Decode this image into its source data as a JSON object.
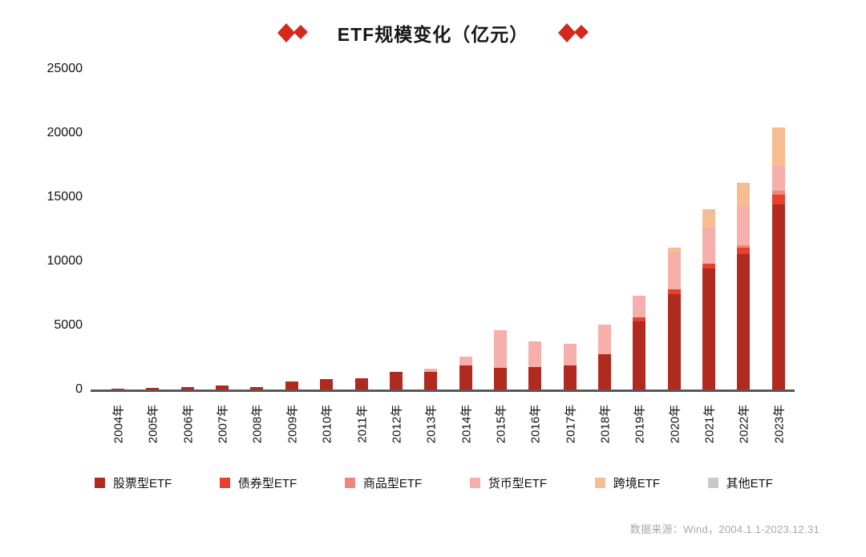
{
  "title": {
    "text": "ETF规模变化（亿元）"
  },
  "decoration": {
    "diamond_color": "#d3281e",
    "name": "double-diamond"
  },
  "footer": {
    "source": "数据来源：Wind，2004.1.1-2023.12.31"
  },
  "axis_color": "#58585a",
  "chart_data": {
    "type": "bar",
    "stacked": true,
    "title": "ETF规模变化（亿元）",
    "xlabel": "",
    "ylabel": "",
    "ylim": [
      0,
      25000
    ],
    "yticks": [
      0,
      5000,
      10000,
      15000,
      20000,
      25000
    ],
    "grid": false,
    "legend_position": "bottom",
    "categories": [
      "2004年",
      "2005年",
      "2006年",
      "2007年",
      "2008年",
      "2009年",
      "2010年",
      "2011年",
      "2012年",
      "2013年",
      "2014年",
      "2015年",
      "2016年",
      "2017年",
      "2018年",
      "2019年",
      "2020年",
      "2021年",
      "2022年",
      "2023年"
    ],
    "series": [
      {
        "name": "股票型ETF",
        "color": "#b12a20",
        "values": [
          150,
          200,
          250,
          400,
          250,
          700,
          870,
          930,
          1450,
          1450,
          1950,
          1750,
          1800,
          1950,
          2800,
          5400,
          7500,
          9500,
          10600,
          14500
        ]
      },
      {
        "name": "债券型ETF",
        "color": "#e8402f",
        "values": [
          0,
          0,
          0,
          0,
          0,
          0,
          0,
          0,
          0,
          0,
          0,
          0,
          0,
          0,
          0,
          300,
          350,
          400,
          500,
          750
        ]
      },
      {
        "name": "商品型ETF",
        "color": "#f0867b",
        "values": [
          0,
          0,
          0,
          0,
          0,
          0,
          0,
          0,
          0,
          0,
          0,
          0,
          0,
          0,
          0,
          0,
          0,
          0,
          200,
          300
        ]
      },
      {
        "name": "货币型ETF",
        "color": "#f6afaa",
        "values": [
          0,
          0,
          0,
          0,
          0,
          0,
          0,
          0,
          0,
          250,
          650,
          2950,
          2000,
          1650,
          2350,
          1700,
          2900,
          2800,
          3000,
          1950
        ]
      },
      {
        "name": "跨境ETF",
        "color": "#f7bd92",
        "values": [
          0,
          0,
          0,
          0,
          0,
          0,
          0,
          0,
          0,
          0,
          0,
          0,
          0,
          0,
          0,
          0,
          400,
          1450,
          1900,
          3000
        ]
      },
      {
        "name": "其他ETF",
        "color": "#c9c9c9",
        "values": [
          0,
          0,
          0,
          0,
          0,
          0,
          0,
          0,
          0,
          0,
          0,
          0,
          0,
          0,
          0,
          0,
          0,
          0,
          0,
          0
        ]
      }
    ]
  }
}
